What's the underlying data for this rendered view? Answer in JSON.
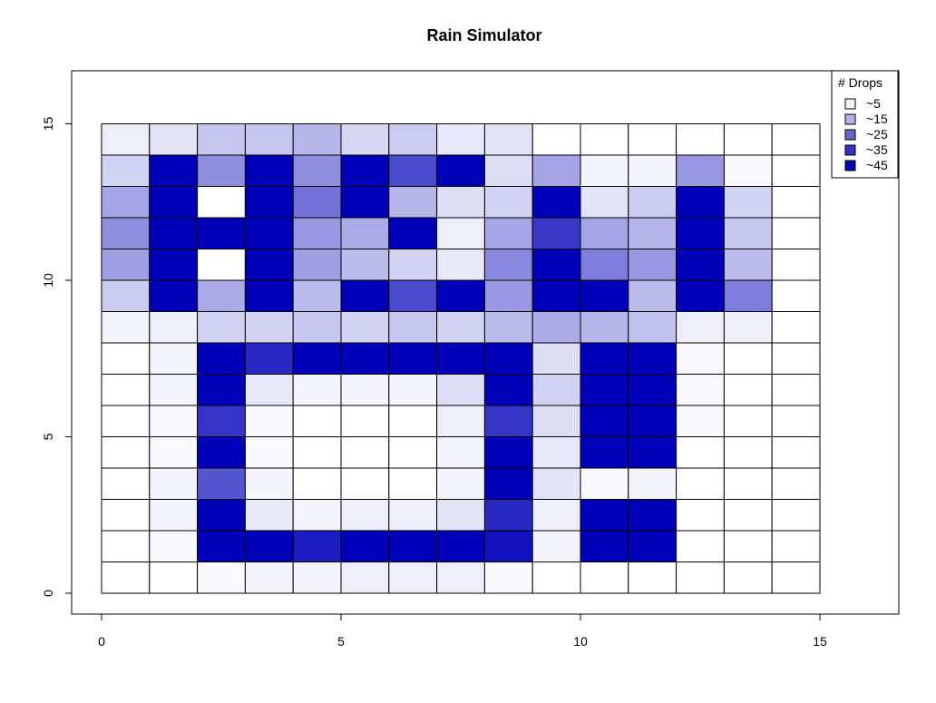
{
  "chart_data": {
    "type": "heatmap",
    "title": "Rain Simulator",
    "xlabel": "",
    "ylabel": "",
    "xlim": [
      -1.3,
      16.9
    ],
    "ylim": [
      -0.7,
      16.9
    ],
    "x_ticks": [
      0,
      5,
      10,
      15
    ],
    "y_ticks": [
      0,
      5,
      10,
      15
    ],
    "cell_size": 1,
    "grid_cols": 15,
    "grid_rows": 15,
    "legend": {
      "title": "# Drops",
      "placement": "top-right",
      "entries": [
        {
          "label": "~5",
          "level": 5,
          "color": "#f3f3fb"
        },
        {
          "label": "~15",
          "level": 15,
          "color": "#b3b3e6"
        },
        {
          "label": "~25",
          "level": 25,
          "color": "#6666d1"
        },
        {
          "label": "~35",
          "level": 35,
          "color": "#3333c0"
        },
        {
          "label": "~45",
          "level": 45,
          "color": "#0000b8"
        }
      ]
    },
    "color_scale": {
      "low": "#ffffff",
      "high": "#0000b8",
      "max_value": 45
    },
    "note_rows": "rows listed top (y 14-15) to bottom (y 0-1); values are approximate drop counts per cell",
    "values": [
      [
        3,
        5,
        10,
        10,
        13,
        7,
        9,
        4,
        5,
        0,
        0,
        0,
        0,
        0,
        0
      ],
      [
        8,
        45,
        20,
        45,
        20,
        45,
        32,
        45,
        6,
        16,
        2,
        2,
        18,
        1,
        0
      ],
      [
        16,
        45,
        0,
        45,
        25,
        45,
        13,
        6,
        8,
        45,
        5,
        9,
        45,
        8,
        0
      ],
      [
        20,
        45,
        45,
        45,
        18,
        15,
        45,
        3,
        16,
        35,
        16,
        13,
        45,
        10,
        0
      ],
      [
        17,
        45,
        0,
        45,
        17,
        12,
        8,
        4,
        21,
        45,
        23,
        18,
        45,
        12,
        0
      ],
      [
        9,
        45,
        15,
        45,
        12,
        45,
        32,
        45,
        18,
        45,
        45,
        12,
        45,
        23,
        0
      ],
      [
        2,
        3,
        8,
        8,
        10,
        8,
        10,
        8,
        12,
        15,
        13,
        11,
        3,
        3,
        0
      ],
      [
        0,
        2,
        45,
        38,
        45,
        45,
        45,
        45,
        45,
        6,
        45,
        45,
        1,
        0,
        0
      ],
      [
        0,
        2,
        45,
        4,
        2,
        2,
        2,
        6,
        45,
        8,
        45,
        45,
        1,
        0,
        0
      ],
      [
        0,
        1,
        36,
        1,
        0,
        0,
        0,
        3,
        36,
        6,
        45,
        45,
        1,
        0,
        0
      ],
      [
        0,
        1,
        45,
        1,
        0,
        0,
        0,
        2,
        45,
        4,
        45,
        45,
        0,
        0,
        0
      ],
      [
        0,
        2,
        30,
        2,
        0,
        0,
        0,
        2,
        45,
        5,
        1,
        2,
        0,
        0,
        0
      ],
      [
        0,
        2,
        45,
        4,
        2,
        3,
        3,
        5,
        38,
        3,
        45,
        45,
        0,
        0,
        0
      ],
      [
        0,
        1,
        45,
        45,
        40,
        45,
        45,
        45,
        42,
        2,
        45,
        45,
        0,
        0,
        0
      ],
      [
        0,
        0,
        1,
        2,
        2,
        3,
        3,
        3,
        1,
        0,
        0,
        0,
        0,
        0,
        0
      ]
    ]
  }
}
